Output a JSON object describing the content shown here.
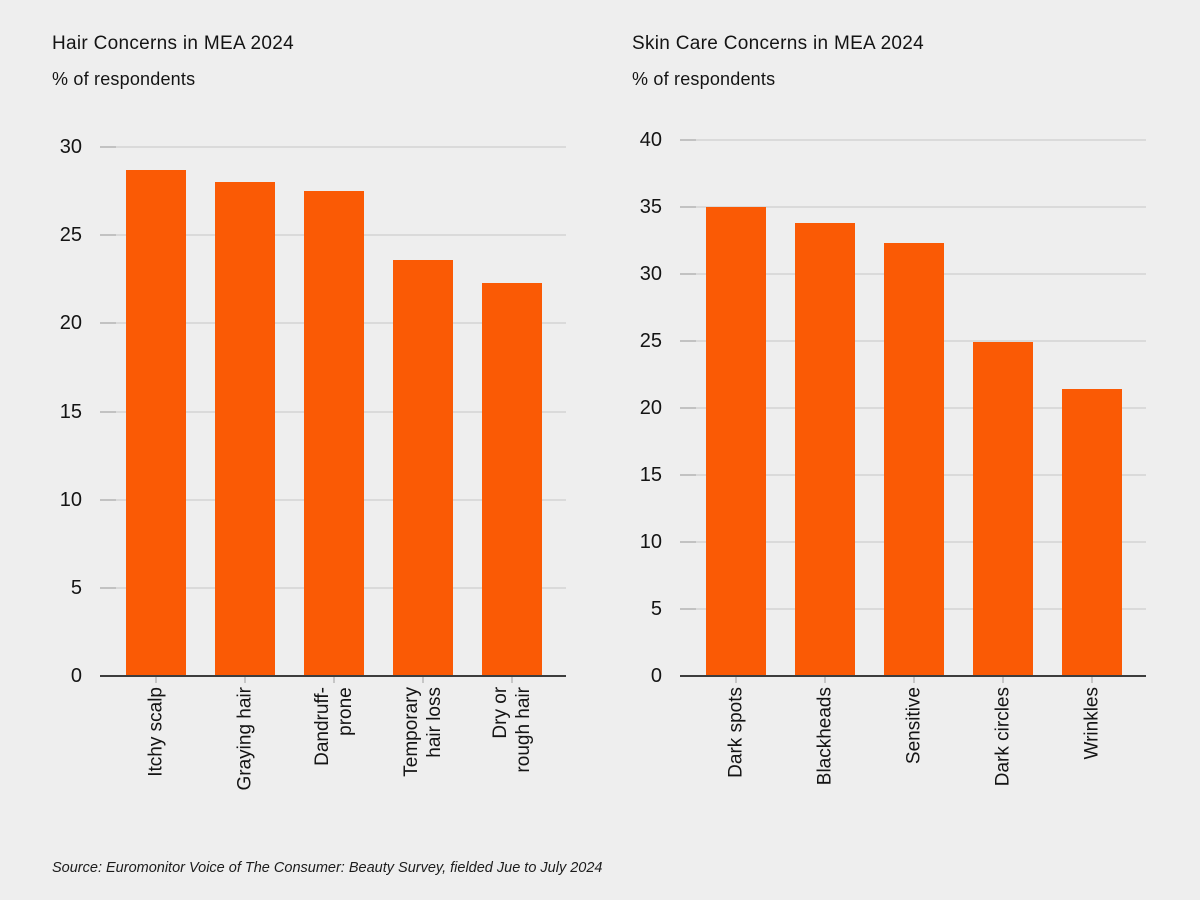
{
  "page": {
    "background": "#eeeeee",
    "source_note": "Source: Euromonitor Voice of The Consumer: Beauty Survey, fielded Jue to July 2024"
  },
  "colors": {
    "bar_orange": "#fa5a05",
    "gridline": "#dadada",
    "tick_mark": "#c2c2c2",
    "axis_line": "#3d3d3d",
    "text": "#141414"
  },
  "chart_data": [
    {
      "type": "bar",
      "title": "Hair Concerns in MEA 2024",
      "subtitle": "% of respondents",
      "categories": [
        "Itchy scalp",
        "Graying hair",
        "Dandruff-\nprone",
        "Temporary\nhair loss",
        "Dry or\nrough hair"
      ],
      "values": [
        28.7,
        28,
        27.5,
        23.6,
        22.3
      ],
      "xlabel": "",
      "ylabel": "% of respondents",
      "ylim": [
        0,
        30
      ],
      "yticks": [
        0,
        5,
        10,
        15,
        20,
        25,
        30
      ],
      "grid": true,
      "legend": "none",
      "bar_color": "#fa5a05"
    },
    {
      "type": "bar",
      "title": "Skin Care Concerns in MEA 2024",
      "subtitle": "% of respondents",
      "categories": [
        "Dark spots",
        "Blackheads",
        "Sensitive",
        "Dark circles",
        "Wrinkles"
      ],
      "values": [
        35,
        33.8,
        32.3,
        24.9,
        21.4
      ],
      "xlabel": "",
      "ylabel": "% of respondents",
      "ylim": [
        0,
        40
      ],
      "yticks": [
        0,
        5,
        10,
        15,
        20,
        25,
        30,
        35,
        40
      ],
      "grid": true,
      "legend": "none",
      "bar_color": "#fa5a05"
    }
  ]
}
